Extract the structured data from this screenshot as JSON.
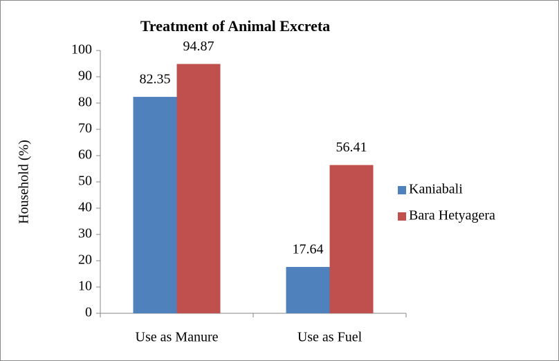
{
  "chart_data": {
    "type": "bar",
    "title": "Treatment of Animal Excreta",
    "y_label": "Household (%)",
    "categories": [
      "Use as Manure",
      "Use as Fuel"
    ],
    "series": [
      {
        "name": "Kaniabali",
        "color": "#4f81bd",
        "values": [
          82.35,
          17.64
        ]
      },
      {
        "name": "Bara Hetyagera",
        "color": "#c0504d",
        "values": [
          94.87,
          56.41
        ]
      }
    ],
    "ylim": [
      0,
      100
    ],
    "yticks": [
      0,
      10,
      20,
      30,
      40,
      50,
      60,
      70,
      80,
      90,
      100
    ],
    "grid": false,
    "legend": "right"
  }
}
